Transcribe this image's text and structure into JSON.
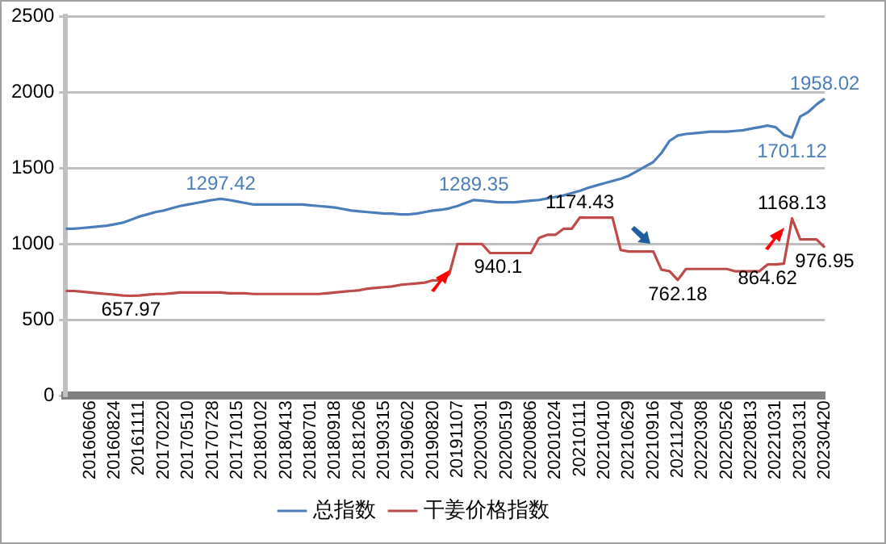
{
  "chart_data": {
    "type": "line",
    "categories": [
      null,
      null,
      null,
      "20160606",
      null,
      null,
      "20160824",
      null,
      null,
      "20161111",
      null,
      null,
      "20170220",
      null,
      null,
      "20170510",
      null,
      null,
      "20170728",
      null,
      null,
      "20171015",
      null,
      null,
      "20180102",
      null,
      null,
      "20180413",
      null,
      null,
      "20180701",
      null,
      null,
      "20180918",
      null,
      null,
      "20181206",
      null,
      null,
      "20190315",
      null,
      null,
      "20190602",
      null,
      null,
      "20190820",
      null,
      null,
      "20191107",
      null,
      null,
      "20200301",
      null,
      null,
      "20200519",
      null,
      null,
      "20200806",
      null,
      null,
      "20201024",
      null,
      null,
      "20210111",
      null,
      null,
      "20210410",
      null,
      null,
      "20210629",
      null,
      null,
      "20210916",
      null,
      null,
      "20211204",
      null,
      null,
      "20220308",
      null,
      null,
      "20220526",
      null,
      null,
      "20220813",
      null,
      null,
      "20221031",
      null,
      null,
      "20230131",
      null,
      null,
      "20230420"
    ],
    "series": [
      {
        "name": "总指数",
        "color": "#4a7ebb",
        "values": [
          1100,
          1100,
          1105,
          1110,
          1115,
          1120,
          1130,
          1140,
          1160,
          1180,
          1195,
          1210,
          1220,
          1235,
          1250,
          1260,
          1270,
          1280,
          1290,
          1297.42,
          1290,
          1280,
          1270,
          1260,
          1260,
          1260,
          1260,
          1260,
          1260,
          1260,
          1255,
          1250,
          1245,
          1240,
          1230,
          1220,
          1215,
          1210,
          1205,
          1200,
          1200,
          1195,
          1195,
          1200,
          1210,
          1220,
          1225,
          1235,
          1250,
          1270,
          1289.35,
          1285,
          1280,
          1275,
          1275,
          1275,
          1280,
          1285,
          1290,
          1300,
          1310,
          1320,
          1335,
          1350,
          1370,
          1385,
          1400,
          1415,
          1430,
          1450,
          1480,
          1510,
          1540,
          1600,
          1680,
          1715,
          1725,
          1730,
          1735,
          1740,
          1740,
          1740,
          1745,
          1750,
          1760,
          1770,
          1780,
          1770,
          1720,
          1701.12,
          1840,
          1870,
          1920,
          1958.02
        ],
        "value_labels": [
          null,
          null,
          null,
          null,
          null,
          null,
          null,
          null,
          null,
          null,
          null,
          null,
          null,
          null,
          null,
          null,
          null,
          null,
          null,
          "1297.42",
          null,
          null,
          null,
          null,
          null,
          null,
          null,
          null,
          null,
          null,
          null,
          null,
          null,
          null,
          null,
          null,
          null,
          null,
          null,
          null,
          null,
          null,
          null,
          null,
          null,
          null,
          null,
          null,
          null,
          null,
          "1289.35",
          null,
          null,
          null,
          null,
          null,
          null,
          null,
          null,
          null,
          null,
          null,
          null,
          null,
          null,
          null,
          null,
          null,
          null,
          null,
          null,
          null,
          null,
          null,
          null,
          null,
          null,
          null,
          null,
          null,
          null,
          null,
          null,
          null,
          null,
          null,
          null,
          null,
          null,
          "1701.12",
          null,
          null,
          null,
          "1958.02"
        ]
      },
      {
        "name": "干姜价格指数",
        "color": "#be4b48",
        "values": [
          690,
          690,
          685,
          680,
          675,
          670,
          665,
          660,
          657.97,
          660,
          665,
          670,
          670,
          675,
          680,
          680,
          680,
          680,
          680,
          680,
          675,
          675,
          675,
          670,
          670,
          670,
          670,
          670,
          670,
          670,
          670,
          670,
          675,
          680,
          685,
          690,
          695,
          705,
          710,
          715,
          720,
          730,
          735,
          740,
          745,
          760,
          760,
          800,
          1000,
          1000,
          1000,
          1000,
          940,
          940.1,
          940,
          940,
          940,
          940,
          1040,
          1060,
          1060,
          1100,
          1100,
          1174.43,
          1174,
          1174,
          1174,
          1174,
          960,
          950,
          950,
          950,
          950,
          830,
          820,
          762.18,
          835,
          835,
          835,
          835,
          835,
          835,
          820,
          820,
          820,
          820,
          864.62,
          865,
          870,
          1168.13,
          1030,
          1030,
          1030,
          976.95
        ],
        "value_labels": [
          null,
          null,
          null,
          null,
          null,
          null,
          null,
          null,
          "657.97",
          null,
          null,
          null,
          null,
          null,
          null,
          null,
          null,
          null,
          null,
          null,
          null,
          null,
          null,
          null,
          null,
          null,
          null,
          null,
          null,
          null,
          null,
          null,
          null,
          null,
          null,
          null,
          null,
          null,
          null,
          null,
          null,
          null,
          null,
          null,
          null,
          null,
          null,
          null,
          null,
          null,
          null,
          null,
          null,
          "940.1",
          null,
          null,
          null,
          null,
          null,
          null,
          null,
          null,
          null,
          "1174.43",
          null,
          null,
          null,
          null,
          null,
          null,
          null,
          null,
          null,
          null,
          null,
          "762.18",
          null,
          null,
          null,
          null,
          null,
          null,
          null,
          null,
          null,
          null,
          "864.62",
          null,
          null,
          "1168.13",
          null,
          null,
          null,
          "976.95"
        ]
      }
    ],
    "ylim": [
      0,
      2500
    ],
    "yticks": [
      0,
      500,
      1000,
      1500,
      2000,
      2500
    ],
    "grid": "y",
    "legend": "bottom",
    "marker": "none",
    "line_style": "solid"
  }
}
